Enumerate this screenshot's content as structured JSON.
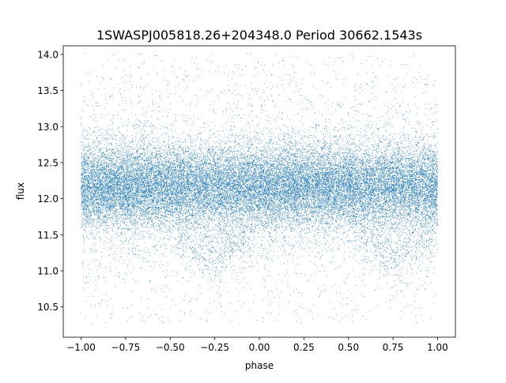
{
  "chart_data": {
    "type": "scatter",
    "title": "1SWASPJ005818.26+204348.0 Period 30662.1543s",
    "xlabel": "phase",
    "ylabel": "flux",
    "xlim": [
      -1.1,
      1.1
    ],
    "ylim": [
      10.08,
      14.12
    ],
    "x_ticks": [
      -1.0,
      -0.75,
      -0.5,
      -0.25,
      0.0,
      0.25,
      0.5,
      0.75,
      1.0
    ],
    "x_tick_labels": [
      "−1.00",
      "−0.75",
      "−0.50",
      "−0.25",
      "0.00",
      "0.25",
      "0.50",
      "0.75",
      "1.00"
    ],
    "y_ticks": [
      10.5,
      11.0,
      11.5,
      12.0,
      12.5,
      13.0,
      13.5,
      14.0
    ],
    "y_tick_labels": [
      "10.5",
      "11.0",
      "11.5",
      "12.0",
      "12.5",
      "13.0",
      "13.5",
      "14.0"
    ],
    "grid": false,
    "marker_color": "#1f77b4",
    "x_range": [
      -1.0,
      1.0
    ],
    "y_range": [
      10.27,
      14.02
    ],
    "baseline_flux": 12.17,
    "baseline_spread": 0.28,
    "dip_centers": [
      -0.25,
      0.75
    ],
    "dip_flux": 11.2
  }
}
